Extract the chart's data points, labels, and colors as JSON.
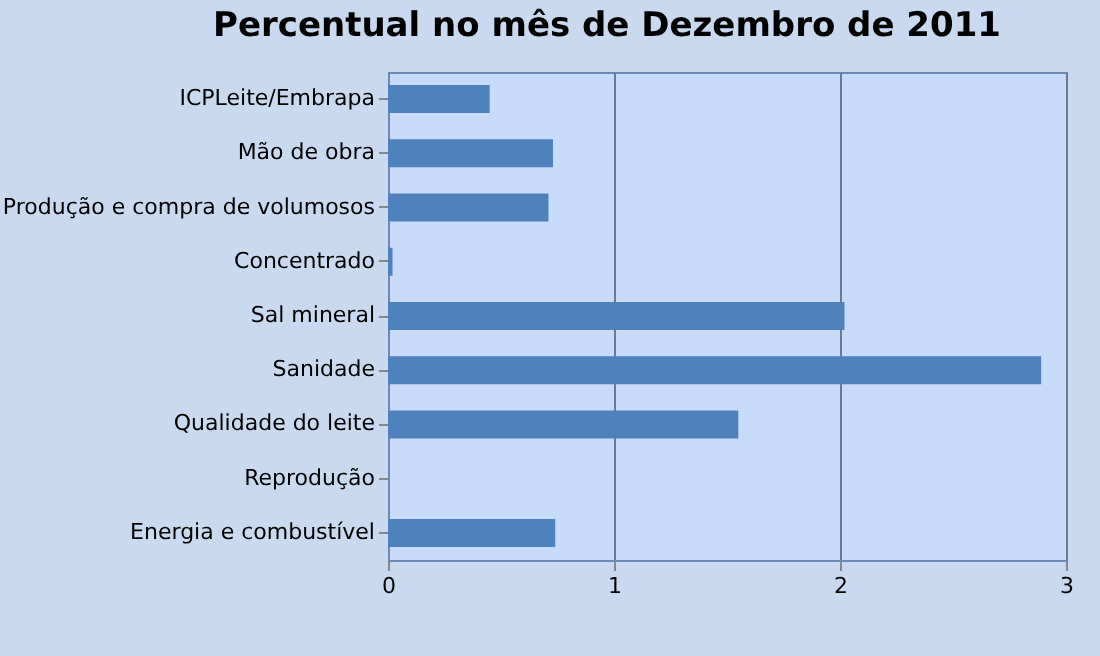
{
  "chart_data": {
    "type": "bar",
    "orientation": "horizontal",
    "title": "Percentual no mês de Dezembro de 2011",
    "categories": [
      "ICPLeite/Embrapa",
      "Mão de obra",
      "Produção e compra de volumosos",
      "Concentrado",
      "Sal mineral",
      "Sanidade",
      "Qualidade do leite",
      "Reprodução",
      "Energia e combustível"
    ],
    "values": [
      0.45,
      0.73,
      0.71,
      0.02,
      2.02,
      2.89,
      1.55,
      0,
      0.74
    ],
    "color": "#4f81bd",
    "xlim": [
      0,
      3
    ],
    "xticks": [
      0,
      1,
      2,
      3
    ],
    "grid": "x"
  }
}
